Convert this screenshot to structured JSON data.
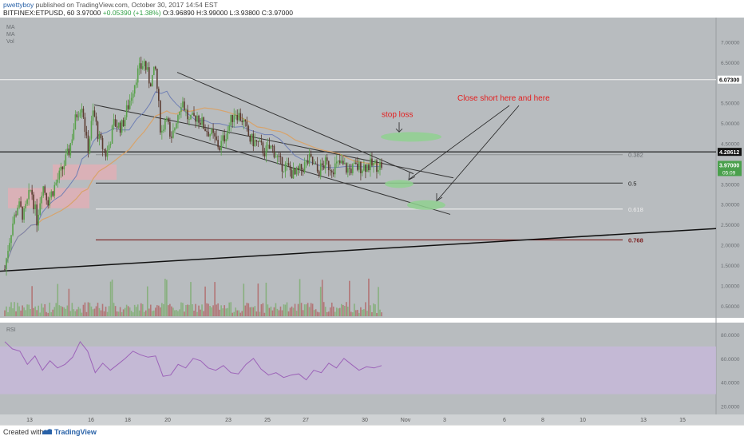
{
  "header": {
    "username": "pwettyboy",
    "published_text": "published on TradingView.com, October 30, 2017 14:54 EST",
    "symbol_line": "BITFINEX:ETPUSD, 60",
    "last_value": "3.97000",
    "change": "+0.05390 (+1.38%)",
    "ohlc": "O:3.96890 H:3.99000 L:3.93800 C:3.97000"
  },
  "legend": [
    "MA",
    "MA",
    "Vol"
  ],
  "rsi_label": "RSI",
  "annotations": {
    "stop_loss": "stop loss",
    "close_short": "Close short here and here"
  },
  "fib_levels": [
    {
      "label": "0.382",
      "price": 4.26
    },
    {
      "label": "0.5",
      "price": 3.52
    },
    {
      "label": "0.618",
      "price": 2.88
    }
  ],
  "key_levels": [
    {
      "label": "0.768",
      "price": 2.12,
      "color": "#7b1f1f"
    }
  ],
  "price_tags": {
    "resistance": "6.07300",
    "horizontal": "4.28612",
    "last": "3.97000",
    "countdown": "05:09"
  },
  "colors": {
    "background": "#b8bcbf",
    "candle_up": "#58a14a",
    "candle_down": "#5a3a2f",
    "ma_fast": "#6f7fb4",
    "ma_slow": "#d8a36a",
    "rsi_band": "#c8b8dc",
    "rsi_line": "#9c63b8",
    "zone_green": "#8fd18f",
    "zone_red": "#e6aeb4",
    "last_tag": "#4aa04c",
    "annotation_red": "#e32020"
  },
  "chart_data": {
    "type": "candlestick",
    "title": "BITFINEX:ETPUSD, 60",
    "price_axis_ticks": [
      "7.00000",
      "6.50000",
      "5.50000",
      "5.00000",
      "4.50000",
      "3.50000",
      "3.00000",
      "2.50000",
      "2.00000",
      "1.50000",
      "1.00000",
      "0.50000"
    ],
    "rsi_axis_ticks": [
      "80.0000",
      "60.0000",
      "40.0000",
      "20.0000"
    ],
    "x_tick_labels": [
      "13",
      "16",
      "18",
      "20",
      "23",
      "25",
      "27",
      "30",
      "Nov",
      "3",
      "6",
      "8",
      "10",
      "13",
      "15"
    ],
    "ylim": [
      0.2,
      7.6
    ],
    "rsi_ylim": [
      13,
      90
    ],
    "price_path": [
      [
        0,
        1.4
      ],
      [
        0.008,
        1.9
      ],
      [
        0.02,
        2.5
      ],
      [
        0.035,
        3.0
      ],
      [
        0.05,
        2.7
      ],
      [
        0.07,
        3.4
      ],
      [
        0.085,
        2.6
      ],
      [
        0.1,
        3.5
      ],
      [
        0.115,
        3.1
      ],
      [
        0.13,
        3.4
      ],
      [
        0.15,
        3.8
      ],
      [
        0.17,
        4.3
      ],
      [
        0.19,
        5.2
      ],
      [
        0.205,
        5.5
      ],
      [
        0.22,
        4.3
      ],
      [
        0.235,
        5.3
      ],
      [
        0.25,
        4.6
      ],
      [
        0.27,
        4.2
      ],
      [
        0.29,
        5.0
      ],
      [
        0.31,
        4.9
      ],
      [
        0.33,
        5.5
      ],
      [
        0.35,
        6.2
      ],
      [
        0.37,
        6.5
      ],
      [
        0.385,
        6.0
      ],
      [
        0.4,
        6.3
      ],
      [
        0.415,
        4.7
      ],
      [
        0.43,
        5.3
      ],
      [
        0.44,
        4.4
      ],
      [
        0.455,
        5.1
      ],
      [
        0.47,
        5.6
      ],
      [
        0.49,
        5.0
      ],
      [
        0.51,
        5.2
      ],
      [
        0.53,
        4.9
      ],
      [
        0.55,
        4.7
      ],
      [
        0.57,
        4.4
      ],
      [
        0.59,
        4.8
      ],
      [
        0.61,
        5.3
      ],
      [
        0.63,
        5.1
      ],
      [
        0.65,
        4.6
      ],
      [
        0.67,
        4.5
      ],
      [
        0.69,
        4.3
      ],
      [
        0.71,
        4.4
      ],
      [
        0.73,
        4.0
      ],
      [
        0.75,
        3.9
      ],
      [
        0.77,
        3.7
      ],
      [
        0.79,
        3.9
      ],
      [
        0.81,
        4.1
      ],
      [
        0.83,
        3.8
      ],
      [
        0.85,
        4.0
      ],
      [
        0.87,
        3.9
      ],
      [
        0.89,
        4.0
      ],
      [
        0.91,
        3.85
      ],
      [
        0.93,
        3.9
      ],
      [
        0.96,
        3.95
      ],
      [
        1.0,
        3.97
      ]
    ],
    "rsi_path": [
      [
        0,
        74
      ],
      [
        0.02,
        68
      ],
      [
        0.04,
        66
      ],
      [
        0.06,
        55
      ],
      [
        0.08,
        62
      ],
      [
        0.1,
        50
      ],
      [
        0.12,
        58
      ],
      [
        0.14,
        52
      ],
      [
        0.16,
        55
      ],
      [
        0.18,
        61
      ],
      [
        0.2,
        74
      ],
      [
        0.22,
        66
      ],
      [
        0.24,
        48
      ],
      [
        0.26,
        56
      ],
      [
        0.28,
        50
      ],
      [
        0.3,
        55
      ],
      [
        0.32,
        60
      ],
      [
        0.34,
        66
      ],
      [
        0.36,
        63
      ],
      [
        0.38,
        61
      ],
      [
        0.4,
        62
      ],
      [
        0.42,
        45
      ],
      [
        0.44,
        46
      ],
      [
        0.46,
        55
      ],
      [
        0.48,
        52
      ],
      [
        0.5,
        60
      ],
      [
        0.52,
        58
      ],
      [
        0.54,
        52
      ],
      [
        0.56,
        50
      ],
      [
        0.58,
        54
      ],
      [
        0.6,
        48
      ],
      [
        0.62,
        47
      ],
      [
        0.64,
        55
      ],
      [
        0.66,
        60
      ],
      [
        0.68,
        51
      ],
      [
        0.7,
        46
      ],
      [
        0.72,
        48
      ],
      [
        0.74,
        44
      ],
      [
        0.76,
        46
      ],
      [
        0.78,
        47
      ],
      [
        0.8,
        42
      ],
      [
        0.82,
        50
      ],
      [
        0.84,
        48
      ],
      [
        0.86,
        56
      ],
      [
        0.88,
        52
      ],
      [
        0.9,
        60
      ],
      [
        0.92,
        55
      ],
      [
        0.94,
        50
      ],
      [
        0.96,
        53
      ],
      [
        0.98,
        52
      ],
      [
        1.0,
        54
      ]
    ]
  }
}
